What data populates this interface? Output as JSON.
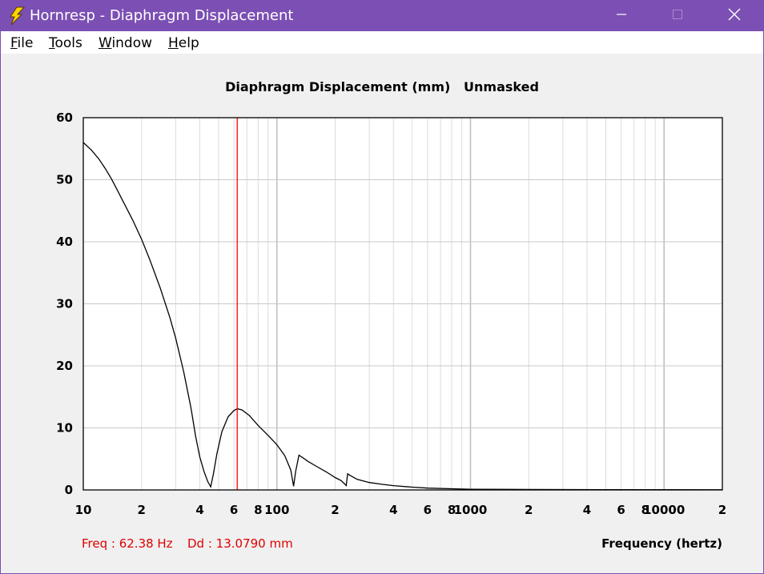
{
  "window": {
    "title": "Hornresp - Diaphragm Displacement",
    "minimize_icon": "minimize-icon",
    "maximize_icon": "maximize-icon",
    "close_icon": "close-icon",
    "app_icon": "lightning-bolt-icon"
  },
  "menu": {
    "items": [
      {
        "acc": "F",
        "rest": "ile"
      },
      {
        "acc": "T",
        "rest": "ools"
      },
      {
        "acc": "W",
        "rest": "indow"
      },
      {
        "acc": "H",
        "rest": "elp"
      }
    ]
  },
  "chart": {
    "title_main": "Diaphragm Displacement (mm)",
    "title_mode": "Unmasked",
    "readout_freq": "Freq : 62.38 Hz",
    "readout_dd": "Dd : 13.0790 mm",
    "xlabel": "Frequency (hertz)"
  },
  "chart_data": {
    "type": "line",
    "title": "Diaphragm Displacement (mm)   Unmasked",
    "xlabel": "Frequency (hertz)",
    "ylabel": "",
    "xscale": "log",
    "xlim": [
      10,
      20000
    ],
    "ylim": [
      0,
      60
    ],
    "y_ticks": [
      "0",
      "10",
      "20",
      "30",
      "40",
      "50",
      "60"
    ],
    "x_tick_labels": [
      {
        "x": 10,
        "label": "10"
      },
      {
        "x": 20,
        "label": "2"
      },
      {
        "x": 40,
        "label": "4"
      },
      {
        "x": 60,
        "label": "6"
      },
      {
        "x": 80,
        "label": "8"
      },
      {
        "x": 100,
        "label": "100"
      },
      {
        "x": 200,
        "label": "2"
      },
      {
        "x": 400,
        "label": "4"
      },
      {
        "x": 600,
        "label": "6"
      },
      {
        "x": 800,
        "label": "8"
      },
      {
        "x": 1000,
        "label": "1000"
      },
      {
        "x": 2000,
        "label": "2"
      },
      {
        "x": 4000,
        "label": "4"
      },
      {
        "x": 6000,
        "label": "6"
      },
      {
        "x": 8000,
        "label": "8"
      },
      {
        "x": 10000,
        "label": "10000"
      },
      {
        "x": 20000,
        "label": "2"
      }
    ],
    "grid": true,
    "cursor_x": 62.38,
    "cursor_color": "#ff0000",
    "line_color": "#000000",
    "series": [
      {
        "x": [
          10,
          11,
          12,
          13,
          14,
          15,
          16,
          18,
          20,
          22,
          25,
          28,
          30,
          33,
          36,
          38,
          40,
          42,
          44,
          45.5,
          47,
          49,
          52,
          56,
          60,
          62.38,
          66,
          72,
          80,
          90,
          100,
          110,
          118,
          122,
          125,
          130,
          136,
          145,
          160,
          180,
          200,
          215,
          225,
          228,
          232,
          240,
          260,
          300,
          350,
          400,
          500,
          600,
          800,
          1000,
          2000,
          5000,
          10000,
          20000
        ],
        "y": [
          56,
          54.8,
          53.4,
          51.8,
          50.1,
          48.3,
          46.6,
          43.5,
          40.4,
          37.2,
          32.5,
          27.8,
          24.5,
          19.1,
          13.2,
          8.7,
          5.3,
          3.0,
          1.3,
          0.5,
          2.6,
          5.8,
          9.4,
          11.8,
          12.8,
          13.08,
          12.9,
          12.0,
          10.4,
          8.8,
          7.3,
          5.5,
          3.2,
          0.6,
          3.0,
          5.6,
          5.2,
          4.6,
          3.8,
          2.9,
          2.0,
          1.5,
          0.9,
          0.7,
          2.6,
          2.3,
          1.7,
          1.2,
          0.9,
          0.7,
          0.45,
          0.3,
          0.2,
          0.12,
          0.08,
          0.05,
          0.04,
          0.03
        ]
      }
    ]
  }
}
